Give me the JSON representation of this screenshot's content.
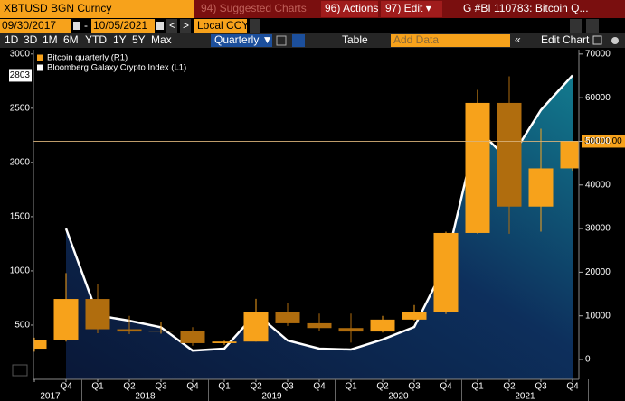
{
  "toolbar": {
    "security": "XBTUSD BGN Curncy",
    "suggested": "94) Suggested Charts",
    "actions": "96) Actions ▾",
    "edit": "97) Edit ▾",
    "title": "G #BI 110783: Bitcoin Q...",
    "start_date": "09/30/2017",
    "separator": "-",
    "end_date": "10/05/2021",
    "prev": "<",
    "next": ">",
    "currency": "Local CCY",
    "periods": [
      "1D",
      "3D",
      "1M",
      "6M",
      "YTD",
      "1Y",
      "5Y",
      "Max"
    ],
    "frequency": "Quarterly ▼",
    "table": "Table",
    "add_data": "Add Data",
    "collapse": "«",
    "edit_chart": "Edit Chart"
  },
  "chart_data": {
    "type": "candlestick",
    "categories": [
      null,
      "Q4",
      "Q1",
      "Q2",
      "Q3",
      "Q4",
      "Q1",
      "Q2",
      "Q3",
      "Q4",
      "Q1",
      "Q2",
      "Q3",
      "Q4",
      "Q1",
      "Q2",
      "Q3",
      "Q4"
    ],
    "x_groups": [
      {
        "label": "2017",
        "from": 0,
        "to": 1
      },
      {
        "label": "2018",
        "from": 2,
        "to": 5
      },
      {
        "label": "2019",
        "from": 6,
        "to": 9
      },
      {
        "label": "2020",
        "from": 10,
        "to": 13
      },
      {
        "label": "2021",
        "from": 14,
        "to": 17
      }
    ],
    "series": [
      {
        "name": "Bitcoin quarterly (R1)",
        "type": "candlestick",
        "axis": "y2",
        "color": "#f7a21b",
        "down_color": "#b06d0e",
        "open": [
          2480,
          4360,
          13860,
          6930,
          6400,
          6600,
          3740,
          4100,
          10800,
          8300,
          7200,
          6400,
          9140,
          10780,
          28990,
          58800,
          35040,
          43790
        ],
        "high": [
          5000,
          19800,
          17200,
          10000,
          8500,
          7400,
          4300,
          13900,
          13000,
          10500,
          10500,
          10000,
          12480,
          29300,
          61800,
          64900,
          52900,
          50000
        ],
        "low": [
          1800,
          4100,
          6000,
          5800,
          5900,
          3150,
          3350,
          4100,
          7700,
          6500,
          3850,
          6150,
          8900,
          10400,
          28800,
          28800,
          29300,
          43300
        ],
        "close": [
          4360,
          13860,
          6930,
          6400,
          6600,
          3740,
          4100,
          10800,
          8300,
          7200,
          6400,
          9140,
          10780,
          28990,
          58800,
          35040,
          43790,
          50000
        ],
        "close_label": "50000.00"
      },
      {
        "name": "Bloomberg Galaxy Crypto Index (L1)",
        "type": "area",
        "color": "#ffffff",
        "values": [
          null,
          1390,
          590,
          540,
          480,
          265,
          283,
          608,
          358,
          283,
          275,
          367,
          483,
          1067,
          2308,
          2017,
          2483,
          2803
        ]
      }
    ],
    "ylim": [
      0,
      3040
    ],
    "yticks": [
      500,
      1000,
      1500,
      2000,
      2500,
      3000
    ],
    "y2lim": [
      -4550,
      71000
    ],
    "y2ticks": [
      0,
      10000,
      20000,
      30000,
      40000,
      50000,
      60000,
      70000
    ],
    "grid": false,
    "legend": "top-left"
  }
}
